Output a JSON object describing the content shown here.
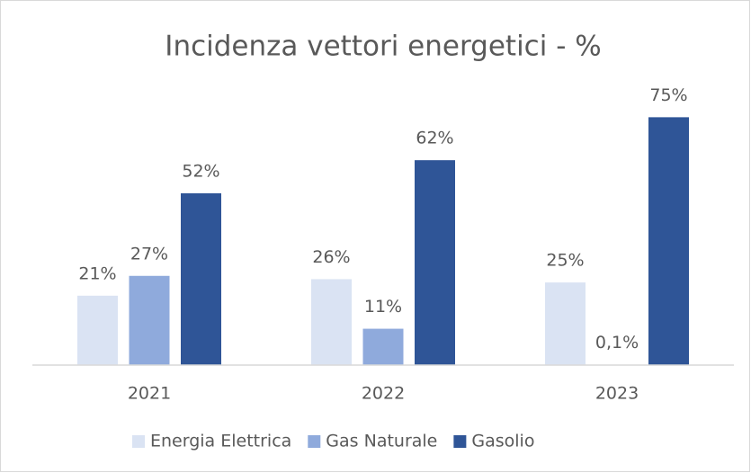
{
  "chart_data": {
    "type": "bar",
    "title": "Incidenza vettori energetici - %",
    "categories": [
      "2021",
      "2022",
      "2023"
    ],
    "series": [
      {
        "name": "Energia Elettrica",
        "color": "#dae3f3",
        "values": [
          21,
          26,
          25
        ],
        "value_labels": [
          "21%",
          "26%",
          "25%"
        ]
      },
      {
        "name": "Gas Naturale",
        "color": "#8faadc",
        "values": [
          27,
          11,
          0.1
        ],
        "value_labels": [
          "27%",
          "11%",
          "0,1%"
        ]
      },
      {
        "name": "Gasolio",
        "color": "#2f5597",
        "values": [
          52,
          62,
          75
        ],
        "value_labels": [
          "52%",
          "62%",
          "75%"
        ]
      }
    ],
    "ylim": [
      0,
      80
    ],
    "legend": "bottom"
  }
}
